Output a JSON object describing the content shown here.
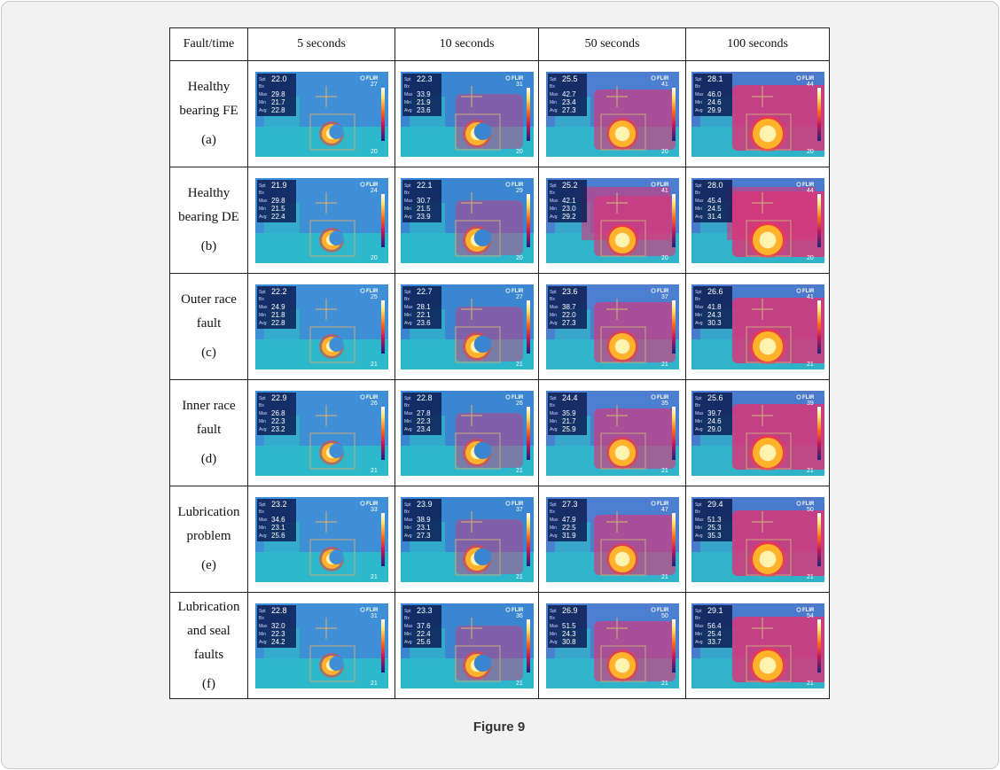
{
  "table": {
    "header": [
      "Fault/time",
      "5 seconds",
      "10 seconds",
      "50 seconds",
      "100 seconds"
    ],
    "rows": [
      {
        "line1": "Healthy",
        "line2": "bearing FE",
        "tag": "(a)",
        "cells": [
          {
            "spot": "22.0",
            "max": "29.8",
            "min": "21.7",
            "avg": "22.8",
            "scale_max": "27",
            "scale_min": "20"
          },
          {
            "spot": "22.3",
            "max": "33.9",
            "min": "21.9",
            "avg": "23.6",
            "scale_max": "31",
            "scale_min": "20"
          },
          {
            "spot": "25.5",
            "max": "42.7",
            "min": "23.4",
            "avg": "27.3",
            "scale_max": "41",
            "scale_min": "20"
          },
          {
            "spot": "28.1",
            "max": "46.0",
            "min": "24.6",
            "avg": "29.9",
            "scale_max": "44",
            "scale_min": "20"
          }
        ]
      },
      {
        "line1": "Healthy",
        "line2": "bearing DE",
        "tag": "(b)",
        "cells": [
          {
            "spot": "21.9",
            "max": "29.8",
            "min": "21.5",
            "avg": "22.4",
            "scale_max": "24",
            "scale_min": "20"
          },
          {
            "spot": "22.1",
            "max": "30.7",
            "min": "21.5",
            "avg": "23.9",
            "scale_max": "29",
            "scale_min": "20"
          },
          {
            "spot": "25.2",
            "max": "42.1",
            "min": "23.0",
            "avg": "29.2",
            "scale_max": "41",
            "scale_min": "20"
          },
          {
            "spot": "28.0",
            "max": "45.4",
            "min": "24.5",
            "avg": "31.4",
            "scale_max": "44",
            "scale_min": "20"
          }
        ]
      },
      {
        "line1": "Outer race",
        "line2": "fault",
        "tag": "(c)",
        "cells": [
          {
            "spot": "22.2",
            "max": "24.9",
            "min": "21.8",
            "avg": "22.8",
            "scale_max": "25",
            "scale_min": "21"
          },
          {
            "spot": "22.7",
            "max": "28.1",
            "min": "22.1",
            "avg": "23.6",
            "scale_max": "27",
            "scale_min": "21"
          },
          {
            "spot": "23.6",
            "max": "38.7",
            "min": "22.0",
            "avg": "27.3",
            "scale_max": "37",
            "scale_min": "21"
          },
          {
            "spot": "26.6",
            "max": "41.8",
            "min": "24.3",
            "avg": "30.3",
            "scale_max": "41",
            "scale_min": "21"
          }
        ]
      },
      {
        "line1": "Inner race",
        "line2": "fault",
        "tag": "(d)",
        "cells": [
          {
            "spot": "22.9",
            "max": "26.8",
            "min": "22.3",
            "avg": "23.2",
            "scale_max": "26",
            "scale_min": "21"
          },
          {
            "spot": "22.8",
            "max": "27.8",
            "min": "22.3",
            "avg": "23.4",
            "scale_max": "26",
            "scale_min": "21"
          },
          {
            "spot": "24.4",
            "max": "35.9",
            "min": "21.7",
            "avg": "25.9",
            "scale_max": "35",
            "scale_min": "21"
          },
          {
            "spot": "25.6",
            "max": "39.7",
            "min": "24.6",
            "avg": "29.0",
            "scale_max": "39",
            "scale_min": "21"
          }
        ]
      },
      {
        "line1": "Lubrication",
        "line2": "problem",
        "tag": "(e)",
        "cells": [
          {
            "spot": "23.2",
            "max": "34.6",
            "min": "23.1",
            "avg": "25.6",
            "scale_max": "33",
            "scale_min": "21"
          },
          {
            "spot": "23.9",
            "max": "38.9",
            "min": "23.1",
            "avg": "27.3",
            "scale_max": "37",
            "scale_min": "21"
          },
          {
            "spot": "27.3",
            "max": "47.9",
            "min": "22.5",
            "avg": "31.9",
            "scale_max": "47",
            "scale_min": "21"
          },
          {
            "spot": "29.4",
            "max": "51.3",
            "min": "25.3",
            "avg": "35.3",
            "scale_max": "50",
            "scale_min": "21"
          }
        ]
      },
      {
        "line1": "Lubrication",
        "line2": "and seal",
        "line3": "faults",
        "tag": "(f)",
        "cells": [
          {
            "spot": "22.8",
            "max": "32.0",
            "min": "22.3",
            "avg": "24.2",
            "scale_max": "31",
            "scale_min": "21"
          },
          {
            "spot": "23.3",
            "max": "37.6",
            "min": "22.4",
            "avg": "25.6",
            "scale_max": "36",
            "scale_min": "21"
          },
          {
            "spot": "26.9",
            "max": "51.5",
            "min": "24.3",
            "avg": "30.8",
            "scale_max": "50",
            "scale_min": "21"
          },
          {
            "spot": "29.1",
            "max": "56.4",
            "min": "25.4",
            "avg": "33.7",
            "scale_max": "54",
            "scale_min": "21"
          }
        ]
      }
    ]
  },
  "thermal_labels": {
    "spot": "Spt",
    "box": "Bx",
    "max": "Max",
    "min": "Min",
    "avg": "Avg",
    "brand": "FLIR"
  },
  "caption": "Figure 9"
}
